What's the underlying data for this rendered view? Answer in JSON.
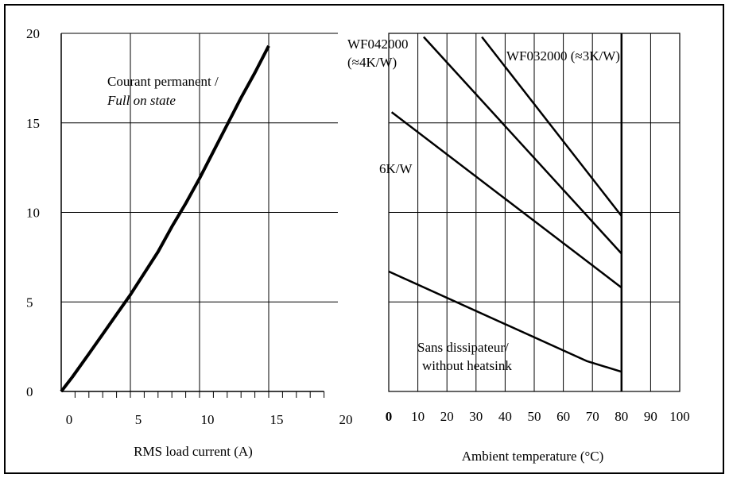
{
  "colors": {
    "line": "#000000",
    "grid": "#000000",
    "background": "#ffffff"
  },
  "chart_data": [
    {
      "type": "line",
      "xlabel": "RMS load current (A)",
      "ylabel": "",
      "xlim": [
        0,
        20
      ],
      "ylim": [
        0,
        20
      ],
      "x_ticks": [
        "0",
        "5",
        "10",
        "15",
        "20"
      ],
      "y_ticks": [
        "0",
        "5",
        "10",
        "15",
        "20"
      ],
      "grid": true,
      "annotations": [
        {
          "text": "Courant permanent /",
          "style": "normal"
        },
        {
          "text": "Full on state",
          "style": "italic"
        }
      ],
      "series": [
        {
          "x": [
            0,
            0.8,
            2,
            3,
            4,
            5,
            6,
            7,
            8,
            9,
            10,
            11,
            12,
            13,
            14,
            15
          ],
          "y": [
            0,
            0.8,
            2.1,
            3.2,
            4.3,
            5.4,
            6.6,
            7.8,
            9.2,
            10.5,
            11.9,
            13.4,
            14.9,
            16.4,
            17.8,
            19.3
          ]
        }
      ]
    },
    {
      "type": "line",
      "xlabel": "Ambient temperature (°C)",
      "ylabel": "",
      "xlim": [
        0,
        100
      ],
      "x_ticks": [
        "0",
        "10",
        "20",
        "30",
        "40",
        "50",
        "60",
        "70",
        "80",
        "90",
        "100"
      ],
      "grid": true,
      "series": [
        {
          "name": "WF032000 (≈3K/W)",
          "x": [
            32,
            80
          ],
          "y": [
            19.8,
            9.8
          ]
        },
        {
          "name": "WF042000 (≈4K/W)",
          "x": [
            12,
            80
          ],
          "y": [
            19.8,
            7.7
          ]
        },
        {
          "name": "6K/W",
          "x": [
            1,
            80
          ],
          "y": [
            15.6,
            5.8
          ]
        },
        {
          "name": "Sans dissipateur/ without heatsink",
          "x": [
            0,
            68,
            80
          ],
          "y": [
            6.7,
            1.7,
            1.1
          ]
        }
      ],
      "series_labels": {
        "wf042_line1": "WF042000",
        "wf042_line2": "(≈4K/W)",
        "wf032": "WF032000 (≈3K/W)",
        "k6": "6K/W",
        "nohs_line1": "Sans dissipateur/",
        "nohs_line2": "without heatsink"
      }
    }
  ]
}
